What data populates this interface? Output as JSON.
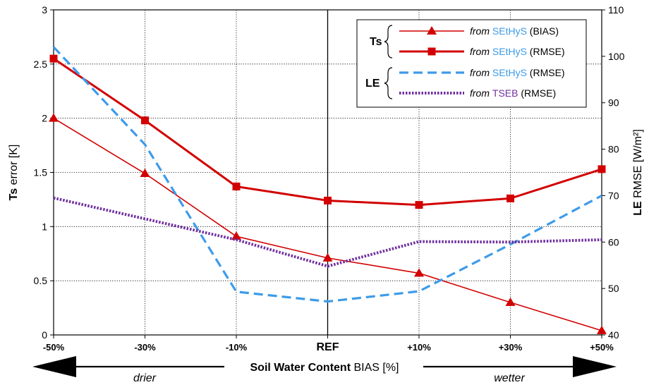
{
  "chart_data": {
    "type": "line",
    "categories": [
      "-50%",
      "-30%",
      "-10%",
      "REF",
      "+10%",
      "+30%",
      "+50%"
    ],
    "left_axis": {
      "label_bold": "Ts",
      "label_rest": " error [K]",
      "ylim": [
        0,
        3
      ],
      "ticks": [
        0,
        0.5,
        1,
        1.5,
        2,
        2.5,
        3
      ],
      "tick_labels": [
        "0",
        "0.5",
        "1",
        "1.5",
        "2",
        "2.5",
        "3"
      ]
    },
    "right_axis": {
      "label_bold": "LE",
      "label_rest": " RMSE [W/m²]",
      "ylim": [
        40,
        110
      ],
      "ticks": [
        40,
        50,
        60,
        70,
        80,
        90,
        100,
        110
      ],
      "tick_labels": [
        "40",
        "50",
        "60",
        "70",
        "80",
        "90",
        "100",
        "110"
      ]
    },
    "xlabel_bold": "Soil Water Content",
    "xlabel_rest": " BIAS [%]",
    "arrow_left_label": "drier",
    "arrow_right_label": "wetter",
    "grid": true,
    "series": [
      {
        "name": "from SEtHyS (BIAS)",
        "axis": "left",
        "color": "#d20000",
        "style": "solid-thin",
        "marker": "triangle",
        "values": [
          2.0,
          1.49,
          0.91,
          0.71,
          0.57,
          0.3,
          0.04
        ]
      },
      {
        "name": "from SEtHyS (RMSE)",
        "axis": "left",
        "color": "#d20000",
        "style": "solid-thick",
        "marker": "square",
        "values": [
          2.55,
          1.98,
          1.37,
          1.24,
          1.2,
          1.26,
          1.53
        ]
      },
      {
        "name": "from SEtHyS (RMSE)",
        "axis": "right",
        "color": "#3d9be9",
        "style": "dashed",
        "marker": "none",
        "values": [
          102,
          81,
          49.3,
          47.2,
          49.4,
          59.5,
          70
        ]
      },
      {
        "name": "from TSEB (RMSE)",
        "axis": "right",
        "color": "#7030a0",
        "style": "dotted",
        "marker": "none",
        "values": [
          69.5,
          65,
          60.5,
          54.8,
          60.1,
          60.0,
          60.5
        ]
      }
    ],
    "legend": {
      "position": "top-right",
      "group_ts": "Ts",
      "group_le": "LE",
      "entries": [
        {
          "from": "from",
          "model": "SEtHyS",
          "model_color": "#3d9be9",
          "metric": "(BIAS)"
        },
        {
          "from": "from",
          "model": "SEtHyS",
          "model_color": "#3d9be9",
          "metric": "(RMSE)"
        },
        {
          "from": "from",
          "model": "SEtHyS",
          "model_color": "#3d9be9",
          "metric": "(RMSE)"
        },
        {
          "from": "from",
          "model": "TSEB",
          "model_color": "#7030a0",
          "metric": "(RMSE)"
        }
      ]
    }
  }
}
